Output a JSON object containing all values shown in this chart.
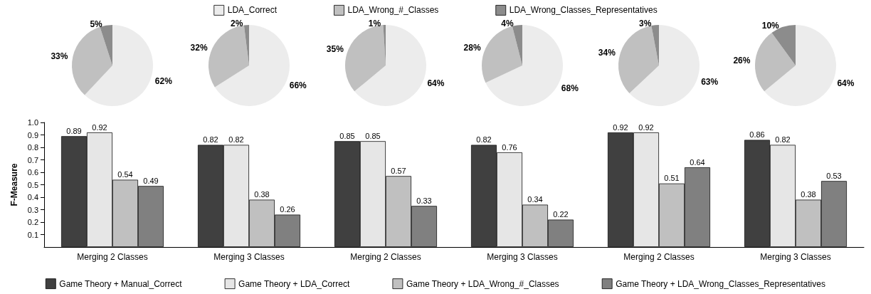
{
  "chart_data": [
    {
      "type": "pie",
      "categories": [
        "LDA_Correct",
        "LDA_Wrong_#_Classes",
        "LDA_Wrong_Classes_Representatives"
      ],
      "colors": [
        "#ececec",
        "#c0c0c0",
        "#8c8c8c"
      ],
      "legend": "top",
      "series": [
        {
          "values": [
            62,
            33,
            5
          ],
          "value_labels": [
            "62%",
            "33%",
            "5%"
          ]
        },
        {
          "values": [
            66,
            32,
            2
          ],
          "value_labels": [
            "66%",
            "32%",
            "2%"
          ]
        },
        {
          "values": [
            64,
            35,
            1
          ],
          "value_labels": [
            "64%",
            "35%",
            "1%"
          ]
        },
        {
          "values": [
            68,
            28,
            4
          ],
          "value_labels": [
            "68%",
            "28%",
            "4%"
          ]
        },
        {
          "values": [
            63,
            34,
            3
          ],
          "value_labels": [
            "63%",
            "34%",
            "3%"
          ]
        },
        {
          "values": [
            64,
            26,
            10
          ],
          "value_labels": [
            "64%",
            "26%",
            "10%"
          ]
        }
      ]
    },
    {
      "type": "bar",
      "ylabel": "F-Measure",
      "categories": [
        "Merging 2 Classes",
        "Merging 3 Classes",
        "Merging 2 Classes",
        "Merging 3 Classes",
        "Merging 2 Classes",
        "Merging 3 Classes"
      ],
      "series": [
        {
          "name": "Game Theory + Manual_Correct",
          "color": "#404040",
          "values": [
            0.89,
            0.82,
            0.85,
            0.82,
            0.92,
            0.86
          ]
        },
        {
          "name": "Game Theory + LDA_Correct",
          "color": "#e6e6e6",
          "values": [
            0.92,
            0.82,
            0.85,
            0.76,
            0.92,
            0.82
          ]
        },
        {
          "name": "Game Theory + LDA_Wrong_#_Classes",
          "color": "#c0c0c0",
          "values": [
            0.54,
            0.38,
            0.57,
            0.34,
            0.51,
            0.38
          ]
        },
        {
          "name": "Game Theory + LDA_Wrong_Classes_Representatives",
          "color": "#808080",
          "values": [
            0.49,
            0.26,
            0.33,
            0.22,
            0.64,
            0.53
          ]
        }
      ],
      "ylim": [
        0,
        1.0
      ],
      "yticks": [
        0.1,
        0.2,
        0.3,
        0.4,
        0.5,
        0.6,
        0.7,
        0.8,
        0.9,
        {
          "value": 1,
          "label": "1.0"
        }
      ],
      "data_labels": true,
      "grid": false,
      "legend": "bottom"
    }
  ]
}
